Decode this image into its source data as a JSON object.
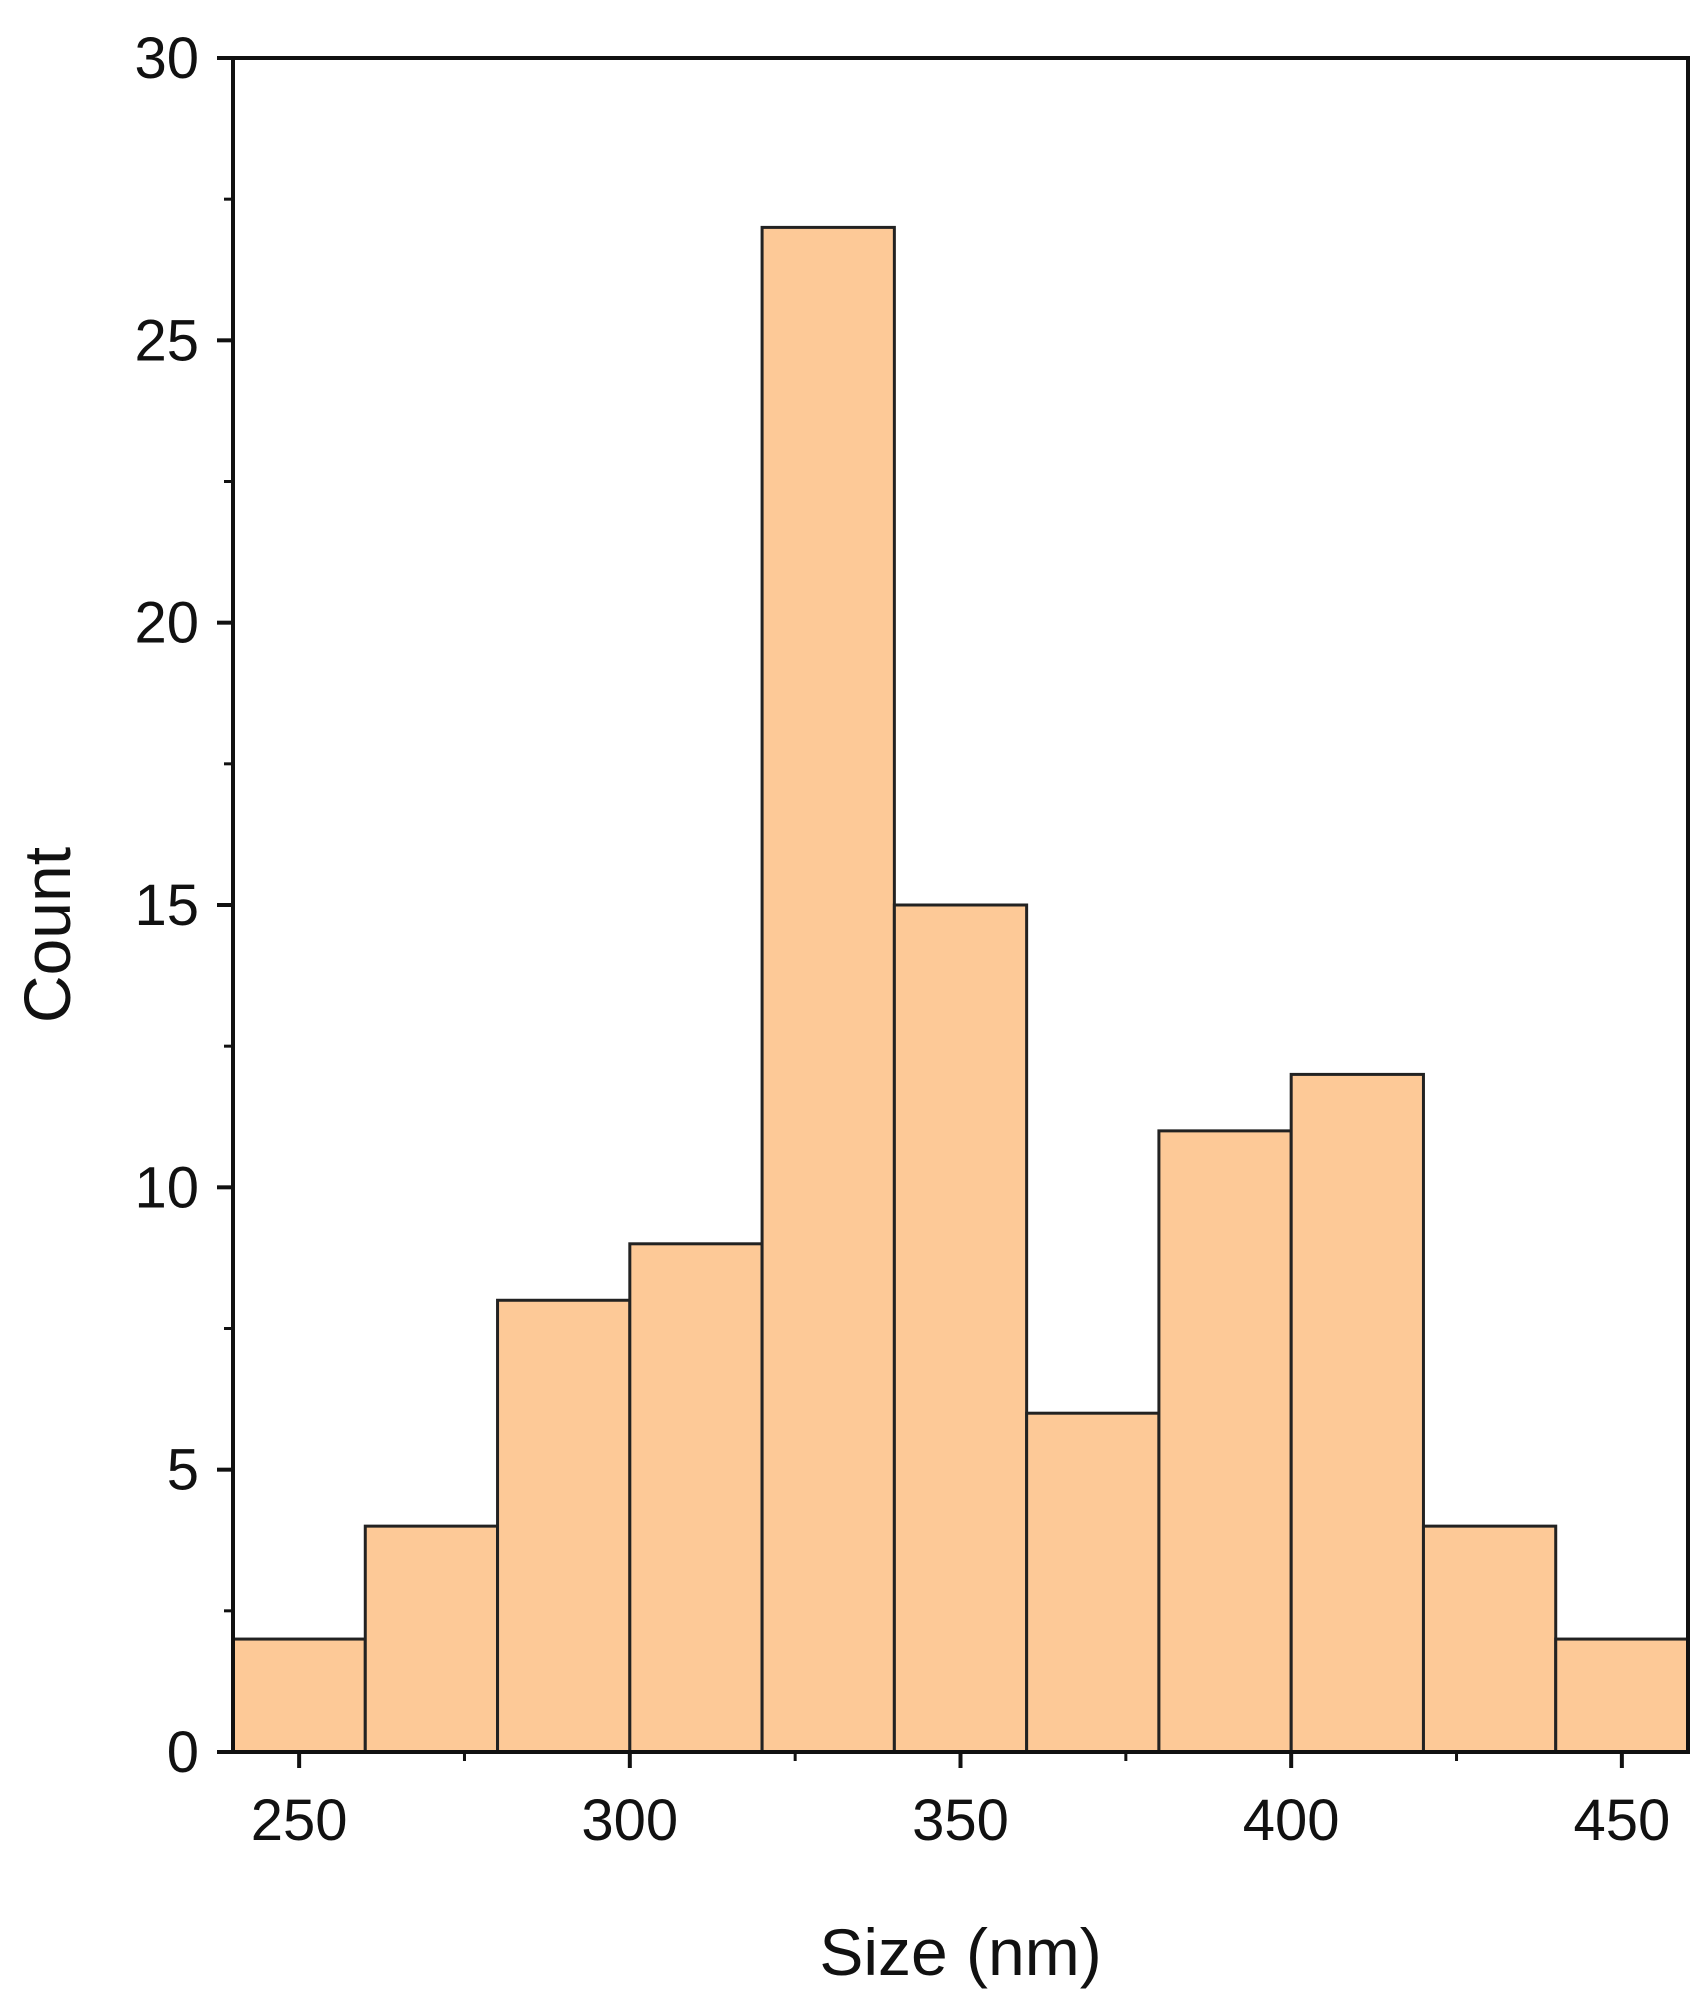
{
  "chart_data": {
    "type": "histogram",
    "title": "",
    "xlabel": "Size (nm)",
    "ylabel": "Count",
    "xlim": [
      240,
      460
    ],
    "ylim": [
      0,
      30
    ],
    "x_ticks": [
      250,
      300,
      350,
      400,
      450
    ],
    "x_minor_ticks": [
      275,
      325,
      375,
      425
    ],
    "y_ticks": [
      0,
      5,
      10,
      15,
      20,
      25,
      30
    ],
    "y_minor_ticks": [
      2.5,
      7.5,
      12.5,
      17.5,
      22.5,
      27.5
    ],
    "bin_edges": [
      240,
      260,
      280,
      300,
      320,
      340,
      360,
      380,
      400,
      420,
      440,
      460
    ],
    "counts": [
      2,
      4,
      8,
      9,
      27,
      15,
      6,
      11,
      12,
      4,
      2
    ],
    "grid": false,
    "legend": "none",
    "colors": {
      "bar_fill": "#FDC997",
      "bar_stroke": "#222222",
      "axis": "#111111",
      "text": "#111111"
    }
  }
}
